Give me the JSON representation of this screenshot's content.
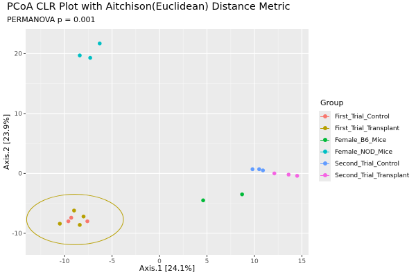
{
  "chart_data": {
    "type": "scatter",
    "title": "PCoA CLR Plot with Aitchison(Euclidean) Distance Metric",
    "subtitle": "PERMANOVA p = 0.001",
    "xlabel": "Axis.1   [24.1%]",
    "ylabel": "Axis.2   [23.9%]",
    "xlim": [
      -14.1,
      15.7
    ],
    "ylim": [
      -13.6,
      24.1
    ],
    "xticks": [
      -10,
      -5,
      0,
      5,
      10,
      15
    ],
    "yticks": [
      -10,
      0,
      10,
      20
    ],
    "grid": true,
    "background": "#ebebeb",
    "legend_title": "Group",
    "legend_position": "right",
    "series": [
      {
        "name": "First_Trial_Control",
        "color": "#F8766D",
        "points": [
          [
            -9.6,
            -8.0
          ],
          [
            -9.3,
            -7.4
          ],
          [
            -7.6,
            -8.0
          ]
        ]
      },
      {
        "name": "First_Trial_Transplant",
        "color": "#B79F00",
        "points": [
          [
            -10.5,
            -8.4
          ],
          [
            -9.0,
            -6.2
          ],
          [
            -8.0,
            -7.2
          ],
          [
            -8.4,
            -8.6
          ]
        ]
      },
      {
        "name": "Female_B6_Mice",
        "color": "#00BA38",
        "points": [
          [
            4.6,
            -4.5
          ],
          [
            8.7,
            -3.5
          ]
        ]
      },
      {
        "name": "Female_NOD_Mice",
        "color": "#00BFC4",
        "points": [
          [
            -8.4,
            19.7
          ],
          [
            -7.3,
            19.3
          ],
          [
            -6.3,
            21.7
          ]
        ]
      },
      {
        "name": "Second_Trial_Control",
        "color": "#619CFF",
        "points": [
          [
            9.8,
            0.7
          ],
          [
            10.5,
            0.7
          ],
          [
            10.9,
            0.5
          ]
        ]
      },
      {
        "name": "Second_Trial_Transplant",
        "color": "#F564E3",
        "points": [
          [
            12.1,
            0.0
          ],
          [
            13.6,
            -0.2
          ],
          [
            14.5,
            -0.4
          ]
        ]
      }
    ],
    "ellipses": [
      {
        "group": "First_Trial_Transplant",
        "color": "#B79F00",
        "center": [
          -8.9,
          -7.7
        ],
        "rx": 5.1,
        "ry": 4.2,
        "angle": 0
      }
    ]
  }
}
